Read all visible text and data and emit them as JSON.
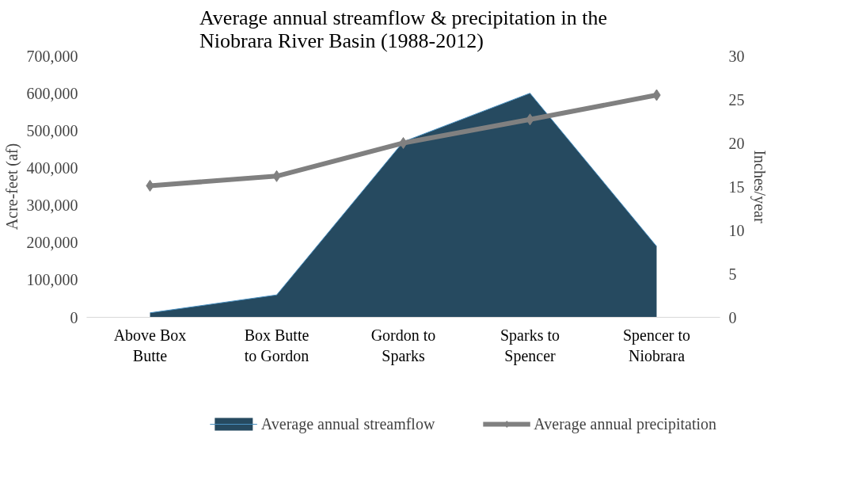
{
  "chart_data": {
    "type": "area",
    "title": "Average annual streamflow & precipitation in the Niobrara River Basin (1988-2012)",
    "ylabel": "Acre-feet (af)",
    "y2label": "Inches/year",
    "categories": [
      "Above Box Butte",
      "Box Butte to Gordon",
      "Gordon to Sparks",
      "Sparks to Spencer",
      "Spencer to Niobrara"
    ],
    "series": [
      {
        "name": "Average annual streamflow",
        "color": "#264a60",
        "values": [
          12000,
          60000,
          470000,
          600000,
          190000
        ]
      },
      {
        "name": "Average annual precipitation",
        "type": "line",
        "axis": "y2",
        "color": "#808080",
        "marker": "diamond",
        "values": [
          15.1,
          16.2,
          20.0,
          22.7,
          25.5
        ]
      }
    ],
    "ylim": [
      0,
      700000
    ],
    "yticks": [
      0,
      {
        "value": 100000,
        "label": "100,000"
      },
      {
        "value": 200000,
        "label": "200,000"
      },
      {
        "value": 300000,
        "label": "300,000"
      },
      {
        "value": 400000,
        "label": "400,000"
      },
      {
        "value": 500000,
        "label": "500,000"
      },
      {
        "value": 600000,
        "label": "600,000"
      },
      {
        "value": 700000,
        "label": "700,000"
      }
    ],
    "y2lim": [
      0,
      30
    ],
    "y2ticks": [
      0,
      5,
      10,
      15,
      20,
      25,
      30
    ],
    "grid": false,
    "legend": "bottom"
  }
}
